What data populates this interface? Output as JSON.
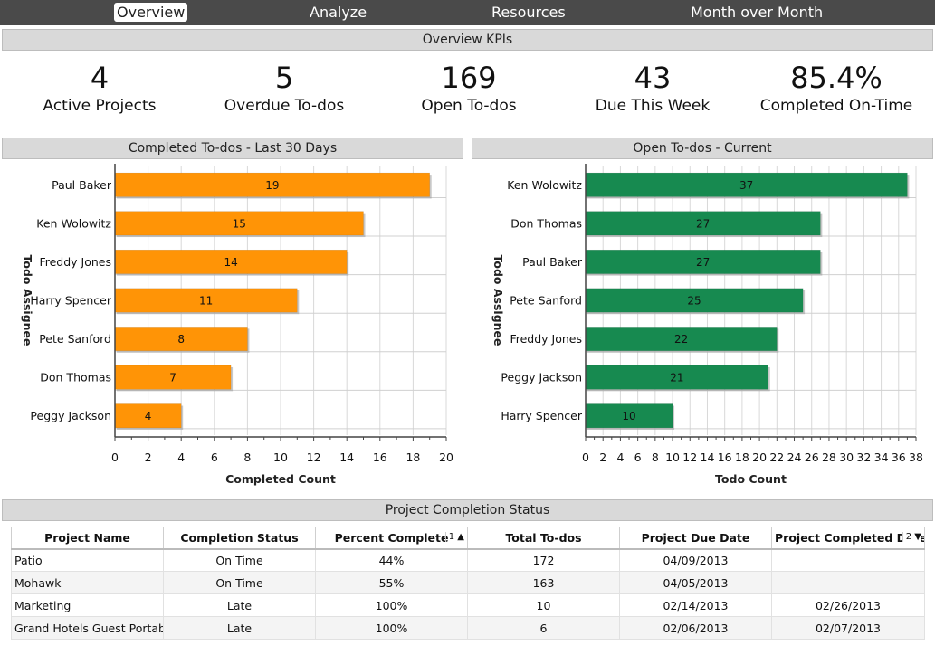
{
  "nav": {
    "items": [
      {
        "label": "Overview",
        "active": true
      },
      {
        "label": "Analyze",
        "active": false
      },
      {
        "label": "Resources",
        "active": false
      },
      {
        "label": "Month over Month",
        "active": false
      }
    ]
  },
  "kpi_section": {
    "title": "Overview KPIs"
  },
  "kpis": [
    {
      "value": "4",
      "label": "Active Projects"
    },
    {
      "value": "5",
      "label": "Overdue To-dos"
    },
    {
      "value": "169",
      "label": "Open To-dos"
    },
    {
      "value": "43",
      "label": "Due This Week"
    },
    {
      "value": "85.4%",
      "label": "Completed On-Time"
    }
  ],
  "chart_data": [
    {
      "type": "bar",
      "orientation": "horizontal",
      "title": "Completed To-dos - Last 30 Days",
      "xlabel": "Completed Count",
      "ylabel": "Todo Assignee",
      "categories": [
        "Paul Baker",
        "Ken Wolowitz",
        "Freddy Jones",
        "Harry Spencer",
        "Pete Sanford",
        "Don Thomas",
        "Peggy Jackson"
      ],
      "values": [
        19,
        15,
        14,
        11,
        8,
        7,
        4
      ],
      "xlim": [
        0,
        20
      ],
      "xticks": [
        0,
        2,
        4,
        6,
        8,
        10,
        12,
        14,
        16,
        18,
        20
      ],
      "color": "#ff9406",
      "grid": true,
      "data_labels": true
    },
    {
      "type": "bar",
      "orientation": "horizontal",
      "title": "Open To-dos - Current",
      "xlabel": "Todo Count",
      "ylabel": "Todo Assignee",
      "categories": [
        "Ken Wolowitz",
        "Don Thomas",
        "Paul Baker",
        "Pete Sanford",
        "Freddy Jones",
        "Peggy Jackson",
        "Harry Spencer"
      ],
      "values": [
        37,
        27,
        27,
        25,
        22,
        21,
        10
      ],
      "xlim": [
        0,
        38
      ],
      "xticks": [
        0,
        2,
        4,
        6,
        8,
        10,
        12,
        14,
        16,
        18,
        20,
        22,
        24,
        26,
        28,
        30,
        32,
        34,
        36,
        38
      ],
      "color": "#178a50",
      "grid": true,
      "data_labels": true
    }
  ],
  "project_section": {
    "title": "Project Completion Status"
  },
  "table": {
    "columns": [
      "Project Name",
      "Completion Status",
      "Percent Complete",
      "Total To-dos",
      "Project Due Date",
      "Project Completed Date"
    ],
    "sort_indicators": {
      "percent": "1 ▲",
      "completed": "2 ▼"
    },
    "rows": [
      [
        "Patio",
        "On Time",
        "44%",
        "172",
        "04/09/2013",
        ""
      ],
      [
        "Mohawk",
        "On Time",
        "55%",
        "163",
        "04/05/2013",
        ""
      ],
      [
        "Marketing",
        "Late",
        "100%",
        "10",
        "02/14/2013",
        "02/26/2013"
      ],
      [
        "Grand Hotels Guest Portable",
        "Late",
        "100%",
        "6",
        "02/06/2013",
        "02/07/2013"
      ]
    ]
  }
}
